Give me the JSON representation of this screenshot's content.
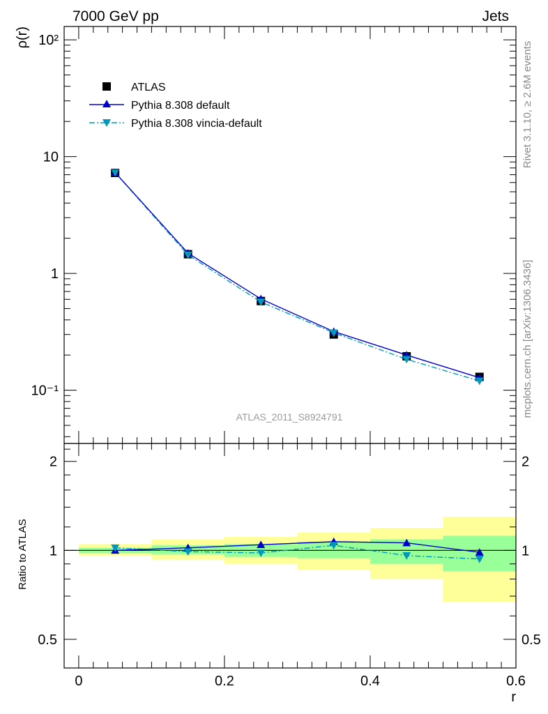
{
  "header": {
    "left": "7000 GeV pp",
    "right": "Jets"
  },
  "side_text": {
    "rivet": "Rivet 3.1.10, ≥ 2.6M events",
    "mcplots": "mcplots.cern.ch [arXiv:1306.3436]"
  },
  "analysis_label": "ATLAS_2011_S8924791",
  "colors": {
    "atlas": "#000000",
    "pythia_default": "#0000cc",
    "pythia_vincia": "#0099bb",
    "band_outer": "#ffff99",
    "band_inner": "#99ff99"
  },
  "chart_data": [
    {
      "type": "line",
      "panel": "main",
      "xlabel": "",
      "ylabel": "ρ(r)",
      "yscale": "log",
      "xlim": [
        -0.02,
        0.6
      ],
      "ylim": [
        0.035,
        130
      ],
      "ytick_labels": [
        "10⁻¹",
        "1",
        "10",
        "10²"
      ],
      "legend_position": "top-left",
      "x": [
        0.05,
        0.15,
        0.25,
        0.35,
        0.45,
        0.55
      ],
      "series": [
        {
          "name": "ATLAS",
          "marker": "square",
          "values": [
            7.25,
            1.46,
            0.58,
            0.3,
            0.195,
            0.13
          ]
        },
        {
          "name": "Pythia 8.308 default",
          "marker": "triangle-up",
          "line": "solid",
          "values": [
            7.3,
            1.49,
            0.605,
            0.318,
            0.2,
            0.128
          ]
        },
        {
          "name": "Pythia 8.308 vincia-default",
          "marker": "triangle-down",
          "line": "dash-dot",
          "values": [
            7.3,
            1.44,
            0.57,
            0.31,
            0.184,
            0.12
          ]
        }
      ]
    },
    {
      "type": "line",
      "panel": "ratio",
      "xlabel": "r",
      "ylabel": "Ratio to ATLAS",
      "xlim": [
        -0.02,
        0.6
      ],
      "ylim": [
        0.4,
        2.3
      ],
      "xtick_labels": [
        "0",
        "0.2",
        "0.4",
        "0.6"
      ],
      "ytick_labels": [
        "0.5",
        "1",
        "2"
      ],
      "x": [
        0.05,
        0.15,
        0.25,
        0.35,
        0.45,
        0.55
      ],
      "bin_edges": [
        0.0,
        0.1,
        0.2,
        0.3,
        0.4,
        0.5,
        0.6
      ],
      "band_inner": [
        [
          0.98,
          1.02
        ],
        [
          0.97,
          1.04
        ],
        [
          0.95,
          1.05
        ],
        [
          0.94,
          1.07
        ],
        [
          0.9,
          1.09
        ],
        [
          0.85,
          1.12
        ]
      ],
      "band_outer": [
        [
          0.96,
          1.05
        ],
        [
          0.93,
          1.09
        ],
        [
          0.9,
          1.11
        ],
        [
          0.86,
          1.15
        ],
        [
          0.8,
          1.19
        ],
        [
          0.67,
          1.3
        ]
      ],
      "series": [
        {
          "name": "Pythia 8.308 default",
          "values": [
            1.0,
            1.02,
            1.045,
            1.07,
            1.06,
            0.985
          ]
        },
        {
          "name": "Pythia 8.308 vincia-default",
          "values": [
            1.02,
            0.99,
            0.98,
            1.04,
            0.96,
            0.935
          ]
        }
      ]
    }
  ]
}
